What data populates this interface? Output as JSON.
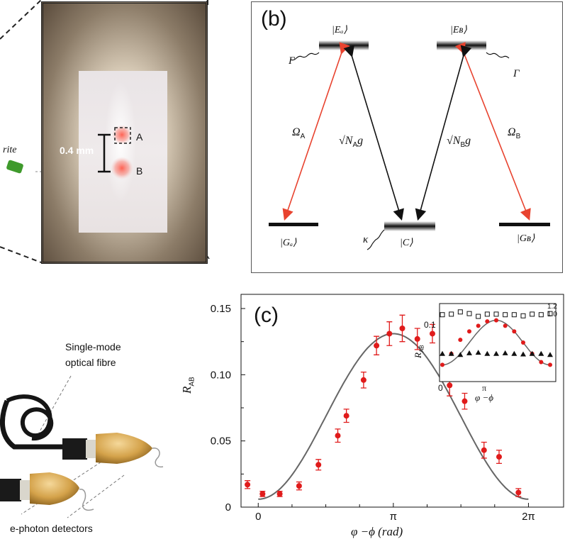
{
  "panel_a": {
    "scale_label": "0.4 mm",
    "spot_a": "A",
    "spot_b": "B",
    "fragment_label": "rite"
  },
  "panel_b": {
    "label": "(b)",
    "level_EA": "|Eₐ⟩",
    "level_EB": "|Eʙ⟩",
    "level_GA": "|Gₐ⟩",
    "level_GB": "|Gʙ⟩",
    "level_C": "|C⟩",
    "gamma": "Γ",
    "kappa": "κ",
    "omega_a": "Ω",
    "omega_a_sub": "A",
    "omega_b": "Ω",
    "omega_b_sub": "B",
    "coupling_a": "√N",
    "coupling_a_sub": "A",
    "coupling_b": "√N",
    "coupling_b_sub": "B",
    "coupling_g": "g"
  },
  "panel_bottom_left": {
    "fibre_line1": "Single-mode",
    "fibre_line2": "optical fibre",
    "detectors_label": "e-photon detectors"
  },
  "chart_data": [
    {
      "type": "scatter",
      "label": "(c)",
      "ylabel": "R",
      "ylabel_sub": "AB",
      "xlabel": "φ −ϕ (rad)",
      "xticks": [
        "0",
        "π",
        "2π"
      ],
      "yticks": [
        "0",
        "0.05",
        "0.10",
        "0.15"
      ],
      "xlim": [
        -0.4,
        7.1
      ],
      "ylim": [
        0,
        0.15
      ],
      "points": [
        {
          "x": -0.25,
          "y": 0.017,
          "err": 0.003
        },
        {
          "x": 0.1,
          "y": 0.01,
          "err": 0.002
        },
        {
          "x": 0.5,
          "y": 0.01,
          "err": 0.002
        },
        {
          "x": 0.95,
          "y": 0.016,
          "err": 0.003
        },
        {
          "x": 1.4,
          "y": 0.032,
          "err": 0.004
        },
        {
          "x": 1.85,
          "y": 0.054,
          "err": 0.005
        },
        {
          "x": 2.05,
          "y": 0.069,
          "err": 0.005
        },
        {
          "x": 2.45,
          "y": 0.096,
          "err": 0.006
        },
        {
          "x": 2.75,
          "y": 0.122,
          "err": 0.007
        },
        {
          "x": 3.05,
          "y": 0.131,
          "err": 0.009
        },
        {
          "x": 3.35,
          "y": 0.135,
          "err": 0.01
        },
        {
          "x": 3.7,
          "y": 0.127,
          "err": 0.008
        },
        {
          "x": 4.05,
          "y": 0.131,
          "err": 0.007
        },
        {
          "x": 4.45,
          "y": 0.092,
          "err": 0.008
        },
        {
          "x": 4.8,
          "y": 0.08,
          "err": 0.006
        },
        {
          "x": 5.25,
          "y": 0.043,
          "err": 0.006
        },
        {
          "x": 5.6,
          "y": 0.038,
          "err": 0.005
        },
        {
          "x": 6.05,
          "y": 0.011,
          "err": 0.003
        }
      ],
      "fit": {
        "kind": "cosine",
        "min": 0.006,
        "max": 0.131
      }
    },
    {
      "type": "scatter",
      "label": "inset",
      "ylabel": "R",
      "ylabel_sub": "AB",
      "xlabel": "φ −ϕ",
      "xticks": [
        "0",
        "π"
      ],
      "yticks": [
        "0.1"
      ],
      "right_ticks": [
        "1.2",
        "1.0"
      ],
      "series": [
        {
          "marker": "open-square",
          "values": [
            0.12,
            0.121,
            0.125,
            0.122,
            0.117,
            0.121,
            0.121,
            0.12,
            0.12,
            0.118,
            0.121,
            0.12,
            0.122
          ]
        },
        {
          "marker": "filled-circle-red",
          "values": [
            0.03,
            0.05,
            0.075,
            0.09,
            0.1,
            0.108,
            0.11,
            0.1,
            0.09,
            0.07,
            0.05,
            0.035,
            0.03
          ]
        },
        {
          "marker": "filled-triangle",
          "values": [
            0.05,
            0.05,
            0.048,
            0.051,
            0.052,
            0.05,
            0.05,
            0.051,
            0.05,
            0.049,
            0.05,
            0.05,
            0.048
          ]
        }
      ]
    }
  ]
}
